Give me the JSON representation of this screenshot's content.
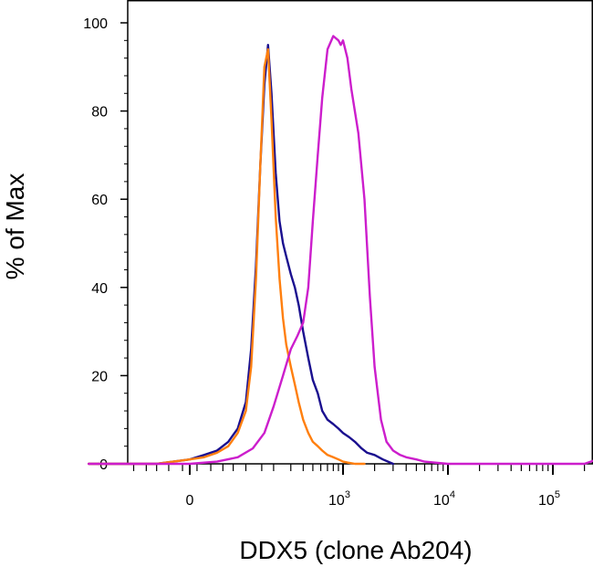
{
  "chart_data": {
    "type": "line",
    "title": "",
    "xlabel": "DDX5 (clone Ab204)",
    "ylabel": "% of Max",
    "ylim": [
      0,
      100
    ],
    "yticks": [
      0,
      20,
      40,
      60,
      80,
      100
    ],
    "ytick_labels": [
      "0",
      "20",
      "40",
      "60",
      "80",
      "100"
    ],
    "x_scale": "biexponential (logicle)",
    "xlim": [
      -300,
      250000
    ],
    "xticks": [
      {
        "value": 0,
        "base": "0",
        "exp": ""
      },
      {
        "value": 1000,
        "base": "10",
        "exp": "3"
      },
      {
        "value": 10000,
        "base": "10",
        "exp": "4"
      },
      {
        "value": 100000,
        "base": "10",
        "exp": "5"
      }
    ],
    "grid": false,
    "legend": "none",
    "series": [
      {
        "color": "#1a0f8f",
        "x": [
          -300,
          -150,
          -50,
          0,
          20,
          40,
          60,
          80,
          100,
          115,
          130,
          145,
          160,
          175,
          190,
          210,
          230,
          250,
          270,
          300,
          330,
          360,
          400,
          450,
          500,
          560,
          620,
          700,
          800,
          900,
          1000,
          1150,
          1300,
          1500,
          1700,
          2000,
          2400,
          3000
        ],
        "y": [
          0,
          0,
          0,
          1,
          2,
          3,
          5,
          8,
          14,
          26,
          45,
          68,
          86,
          95,
          84,
          66,
          55,
          50,
          47,
          43,
          40,
          36,
          30,
          24,
          19,
          16,
          12,
          10,
          9,
          8,
          7,
          6,
          5,
          3.5,
          2.5,
          2,
          1,
          0
        ]
      },
      {
        "color": "#ff7f0e",
        "x": [
          -300,
          -150,
          -50,
          0,
          20,
          40,
          60,
          80,
          100,
          115,
          130,
          145,
          160,
          175,
          190,
          210,
          230,
          250,
          270,
          300,
          330,
          360,
          400,
          450,
          500,
          560,
          620,
          700,
          800,
          900,
          1000,
          1100,
          1300,
          1600
        ],
        "y": [
          0,
          0,
          0,
          1,
          1.5,
          2.5,
          4,
          7,
          12,
          22,
          42,
          68,
          90,
          94,
          78,
          56,
          42,
          33,
          27,
          22,
          18,
          14,
          10,
          7,
          5,
          4,
          3,
          2,
          1.5,
          1,
          0.5,
          0.3,
          0,
          0
        ]
      },
      {
        "color": "#cc1ecc",
        "x": [
          -300,
          -150,
          0,
          40,
          80,
          120,
          160,
          200,
          250,
          300,
          350,
          400,
          450,
          500,
          560,
          620,
          700,
          800,
          900,
          950,
          1000,
          1100,
          1200,
          1400,
          1600,
          1800,
          2000,
          2300,
          2600,
          3000,
          3500,
          4000,
          5000,
          6000,
          8000,
          10000,
          20000,
          50000,
          100000,
          150000,
          200000,
          250000
        ],
        "y": [
          0,
          0,
          0,
          0.5,
          1.5,
          3.5,
          7,
          13,
          20,
          26,
          29,
          32,
          40,
          55,
          70,
          83,
          94,
          97,
          96,
          95,
          96,
          92,
          85,
          75,
          60,
          38,
          22,
          10,
          5,
          3,
          2,
          1.5,
          1,
          0.5,
          0.2,
          0,
          0,
          0,
          0,
          0,
          0,
          0.8
        ]
      }
    ]
  }
}
